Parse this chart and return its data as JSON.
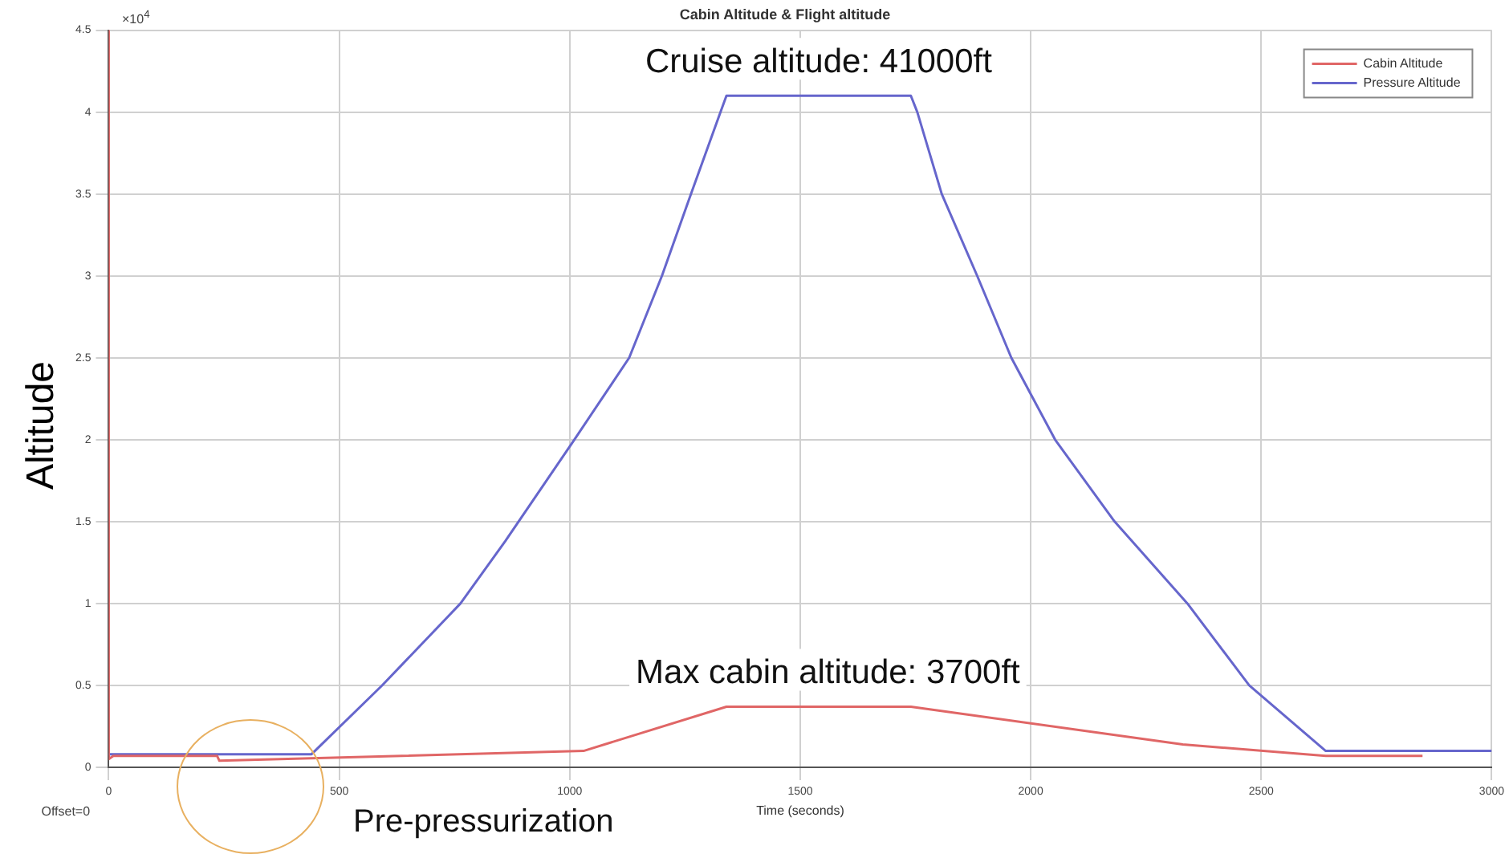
{
  "chart_data": {
    "type": "line",
    "title": "Cabin Altitude & Flight altitude",
    "xlabel": "Time (seconds)",
    "ylabel": "Altitude",
    "xlim": [
      0,
      3000
    ],
    "xticks": [
      0,
      500,
      1000,
      1500,
      2000,
      2500,
      3000
    ],
    "ylim": [
      0,
      4.5
    ],
    "yticks": [
      0,
      0.5,
      1,
      1.5,
      2,
      2.5,
      3,
      3.5,
      4,
      4.5
    ],
    "grid": true,
    "legend": "top right",
    "marker": "none",
    "line_style": "solid",
    "series": [
      {
        "name": "Cabin Altitude",
        "color": "#e06666",
        "x": [
          0,
          0,
          10,
          235,
          240,
          1030,
          1340,
          1740,
          2330,
          2640,
          2850
        ],
        "values": [
          4.5,
          0.05,
          0.07,
          0.07,
          0.04,
          0.1,
          0.37,
          0.37,
          0.14,
          0.07,
          0.07
        ]
      },
      {
        "name": "Pressure Altitude",
        "color": "#6666cc",
        "x": [
          0,
          440,
          593,
          763,
          860,
          1010,
          1129,
          1200,
          1263,
          1327,
          1340,
          1740,
          1754,
          1807,
          1884,
          1958,
          2053,
          2182,
          2340,
          2474,
          2640,
          3000
        ],
        "values": [
          0.08,
          0.08,
          0.5,
          1,
          1.38,
          2,
          2.5,
          3,
          3.5,
          4,
          4.1,
          4.1,
          4,
          3.5,
          3,
          2.5,
          2,
          1.5,
          1,
          0.5,
          0.1,
          0.1
        ]
      }
    ],
    "annotations": [
      {
        "text": "Cruise altitude: 41000ft",
        "x": 1540,
        "y": 4.1
      },
      {
        "text": "Max cabin altitude: 3700ft",
        "x": 1560,
        "y": 0.37
      },
      "×10$^{4}$",
      "Offset=0",
      "Pre-pressurization"
    ]
  }
}
